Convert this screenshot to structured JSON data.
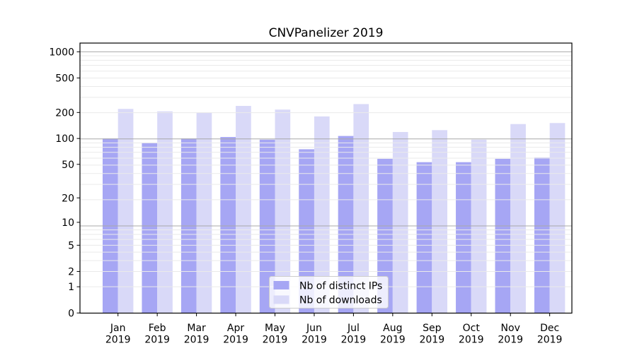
{
  "chart_data": {
    "type": "bar",
    "title": "CNVPanelizer 2019",
    "xlabel": "",
    "ylabel": "",
    "yscale": "log1p",
    "ylim": [
      0,
      1260
    ],
    "grid": true,
    "legend_position": "lower center",
    "yticks": [
      0,
      1,
      2,
      5,
      10,
      20,
      50,
      100,
      200,
      500,
      1000
    ],
    "categories": [
      [
        "Jan",
        "2019"
      ],
      [
        "Feb",
        "2019"
      ],
      [
        "Mar",
        "2019"
      ],
      [
        "Apr",
        "2019"
      ],
      [
        "May",
        "2019"
      ],
      [
        "Jun",
        "2019"
      ],
      [
        "Jul",
        "2019"
      ],
      [
        "Aug",
        "2019"
      ],
      [
        "Sep",
        "2019"
      ],
      [
        "Oct",
        "2019"
      ],
      [
        "Nov",
        "2019"
      ],
      [
        "Dec",
        "2019"
      ]
    ],
    "series": [
      {
        "name": "Nb of distinct IPs",
        "color": "#a6a6f4",
        "values": [
          100,
          89,
          100,
          104,
          97,
          75,
          107,
          58,
          53,
          53,
          58,
          60
        ]
      },
      {
        "name": "Nb of downloads",
        "color": "#d9d9f8",
        "values": [
          220,
          206,
          200,
          238,
          216,
          180,
          250,
          119,
          125,
          97,
          147,
          151
        ]
      }
    ],
    "colors": {
      "major_gridline": "#a8a8a8",
      "minor_gridline": "#eaeaea",
      "spine": "#000000",
      "legend_border": "#cccccc"
    }
  }
}
